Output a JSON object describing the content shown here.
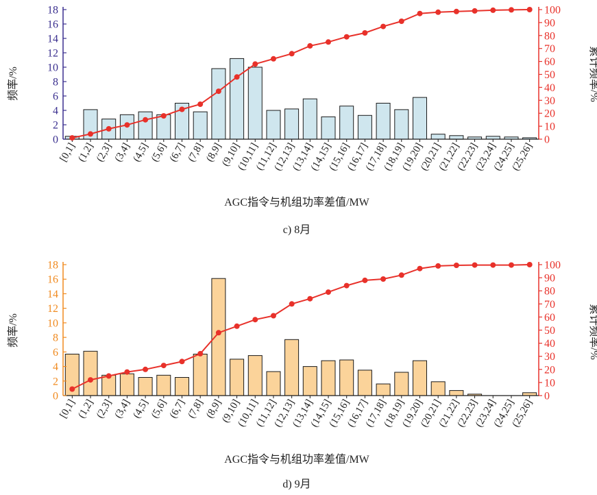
{
  "chart_data": [
    {
      "type": "bar",
      "subtitle": "c) 8月",
      "xlabel": "AGC指令与机组功率差值/MW",
      "ylabel": "频率/%",
      "ylabel_right": "累计频率/%",
      "categories": [
        "[0,1]",
        "(1,2]",
        "(2,3]",
        "(3,4]",
        "(4,5]",
        "(5,6]",
        "(6,7]",
        "(7,8]",
        "(8,9]",
        "(9,10]",
        "(10,11]",
        "(11,12]",
        "(12,13]",
        "(13,14]",
        "(14,15]",
        "(15,16]",
        "(16,17]",
        "(17,18]",
        "(18,19]",
        "(19,20]",
        "(20,21]",
        "(21,22]",
        "(22,23]",
        "(23,24]",
        "(24,25]",
        "(25,26]"
      ],
      "ylim": [
        0,
        18
      ],
      "yticks": [
        0,
        2,
        4,
        6,
        8,
        10,
        12,
        14,
        16,
        18
      ],
      "ylim_right": [
        0,
        100
      ],
      "yticks_right": [
        0,
        10,
        20,
        30,
        40,
        50,
        60,
        70,
        80,
        90,
        100
      ],
      "grid": false,
      "colors": {
        "bar": "#cfe6ee",
        "line": "#e8312a",
        "left_axis": "#3a2f8f",
        "right_axis": "#e8312a"
      },
      "series": [
        {
          "type": "bar",
          "axis": "left",
          "values": [
            0.4,
            4.1,
            2.8,
            3.4,
            3.8,
            3.4,
            5.0,
            3.8,
            9.8,
            11.2,
            10.0,
            4.0,
            4.2,
            5.6,
            3.1,
            4.6,
            3.3,
            5.0,
            4.1,
            5.8,
            0.7,
            0.5,
            0.3,
            0.4,
            0.3,
            0.2
          ]
        },
        {
          "type": "line",
          "axis": "right",
          "values": [
            1,
            4,
            8,
            11,
            15,
            18,
            23,
            27,
            37,
            48,
            58,
            62,
            66,
            72,
            75,
            79,
            82,
            87,
            91,
            97,
            98,
            98.5,
            99,
            99.5,
            99.8,
            100
          ]
        }
      ]
    },
    {
      "type": "bar",
      "subtitle": "d) 9月",
      "xlabel": "AGC指令与机组功率差值/MW",
      "ylabel": "频率/%",
      "ylabel_right": "累计频率/%",
      "categories": [
        "[0,1]",
        "(1,2]",
        "(2,3]",
        "(3,4]",
        "(4,5]",
        "(5,6]",
        "(6,7]",
        "(7,8]",
        "(8,9]",
        "(9,10]",
        "(10,11]",
        "(11,12]",
        "(12,13]",
        "(13,14]",
        "(14,15]",
        "(15,16]",
        "(16,17]",
        "(17,18]",
        "(18,19]",
        "(19,20]",
        "(20,21]",
        "(21,22]",
        "(22,23]",
        "(23,24]",
        "(24,25]",
        "(25,26]"
      ],
      "ylim": [
        0,
        18
      ],
      "yticks": [
        0,
        2,
        4,
        6,
        8,
        10,
        12,
        14,
        16,
        18
      ],
      "ylim_right": [
        0,
        100
      ],
      "yticks_right": [
        0,
        10,
        20,
        30,
        40,
        50,
        60,
        70,
        80,
        90,
        100
      ],
      "grid": false,
      "colors": {
        "bar": "#fbd39a",
        "line": "#e8312a",
        "left_axis": "#f08a1f",
        "right_axis": "#e8312a"
      },
      "series": [
        {
          "type": "bar",
          "axis": "left",
          "values": [
            5.7,
            6.1,
            2.8,
            3.0,
            2.5,
            2.8,
            2.5,
            5.7,
            16.1,
            5.0,
            5.5,
            3.3,
            7.7,
            4.0,
            4.8,
            4.9,
            3.5,
            1.6,
            3.2,
            4.8,
            1.9,
            0.7,
            0.2,
            0,
            0,
            0.4
          ]
        },
        {
          "type": "line",
          "axis": "right",
          "values": [
            5,
            12,
            15,
            18,
            20,
            23,
            26,
            32,
            48,
            53,
            58,
            61,
            70,
            74,
            79,
            84,
            88,
            89,
            92,
            97,
            99,
            99.5,
            99.7,
            99.7,
            99.7,
            100
          ]
        }
      ]
    }
  ]
}
